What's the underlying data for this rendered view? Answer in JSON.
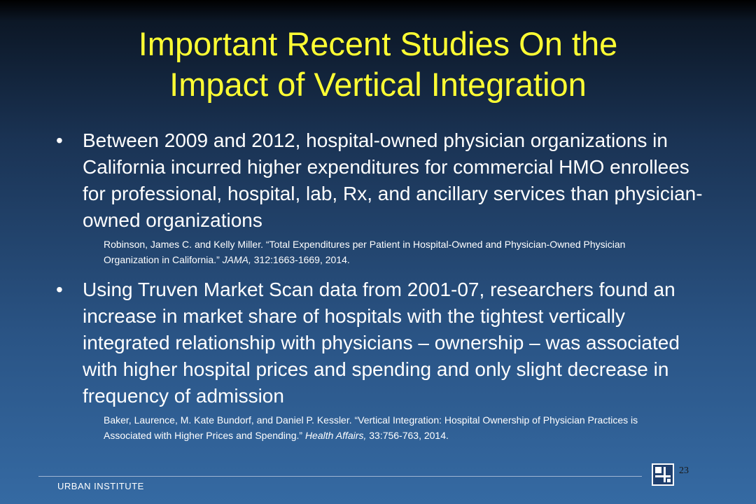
{
  "slide": {
    "title_line1": "Important Recent Studies On the",
    "title_line2": "Impact of Vertical Integration",
    "bullets": [
      {
        "text": "Between 2009 and 2012, hospital-owned physician organizations in California incurred higher expenditures for commercial HMO enrollees for professional, hospital, lab, Rx, and ancillary services than physician-owned organizations",
        "citation": {
          "main": "Robinson, James C. and Kelly Miller. “Total Expenditures per Patient in Hospital-Owned and Physician-Owned Physician Organization in California.” ",
          "journal": "JAMA,",
          "details": " 312:1663-1669, 2014."
        }
      },
      {
        "text": "Using Truven Market Scan data from 2001-07, researchers found an increase in market share of hospitals with the tightest vertically integrated relationship with physicians – ownership – was associated with higher hospital prices and spending and only slight decrease in frequency of admission",
        "citation": {
          "main": "Baker, Laurence, M. Kate Bundorf, and Daniel P. Kessler. “Vertical Integration: Hospital Ownership of Physician Practices is Associated with Higher Prices and Spending.” ",
          "journal": "Health Affairs,",
          "details": " 33:756-763, 2014."
        }
      }
    ],
    "bullet_symbol": "•",
    "footer_label": "URBAN INSTITUTE",
    "page_number": "23",
    "logo_icon": "urban-institute-logo-icon",
    "colors": {
      "title": "#ffff33",
      "text": "#ffffff",
      "background_top": "#000000",
      "background_bottom": "#356aa3"
    }
  }
}
